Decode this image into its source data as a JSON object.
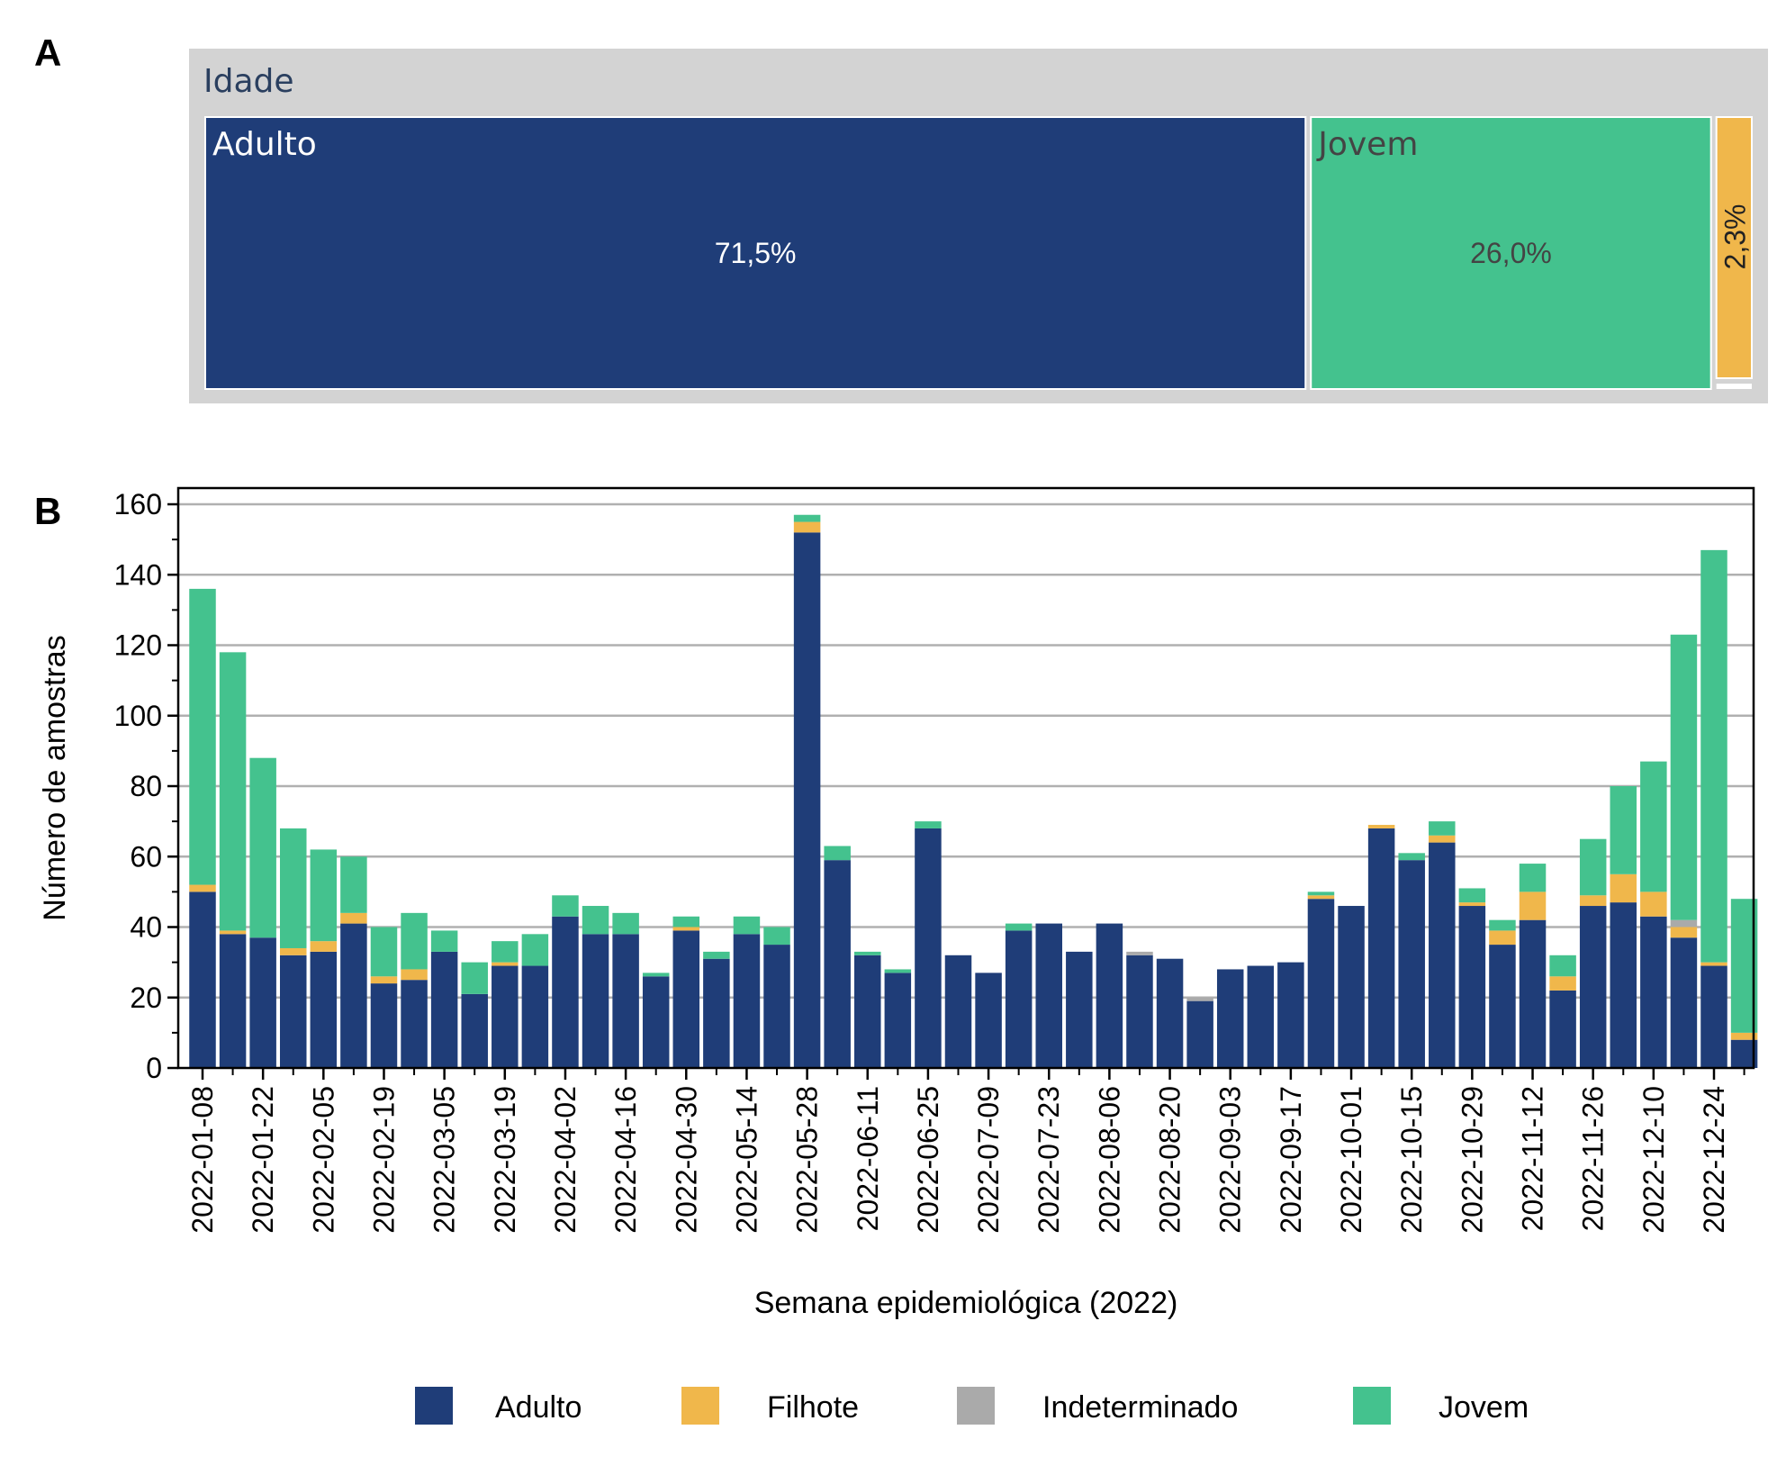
{
  "panel_a": {
    "label": "A",
    "header": "Idade",
    "tiles": [
      {
        "name": "Adulto",
        "pct_label": "71,5%",
        "share": 71.5,
        "color": "#1f3d78",
        "text_color": "#ffffff"
      },
      {
        "name": "Jovem",
        "pct_label": "26,0%",
        "share": 26.0,
        "color": "#44c28e",
        "text_color": "#444444"
      },
      {
        "name": "",
        "pct_label": "2,3%",
        "share": 2.3,
        "color": "#f0b74b",
        "text_color": "#222222"
      }
    ]
  },
  "panel_b": {
    "label": "B"
  },
  "chart_data": {
    "type": "bar",
    "stacked": true,
    "xlabel": "Semana epidemiológica (2022)",
    "ylabel": "Número de amostras",
    "ylim": [
      0,
      160
    ],
    "yticks": [
      0,
      20,
      40,
      60,
      80,
      100,
      120,
      140,
      160
    ],
    "grid": true,
    "legend_position": "bottom",
    "tick_labels": [
      "2022-01-08",
      "2022-01-22",
      "2022-02-05",
      "2022-02-19",
      "2022-03-05",
      "2022-03-19",
      "2022-04-02",
      "2022-04-16",
      "2022-04-30",
      "2022-05-14",
      "2022-05-28",
      "2022-06-11",
      "2022-06-25",
      "2022-07-09",
      "2022-07-23",
      "2022-08-06",
      "2022-08-20",
      "2022-09-03",
      "2022-09-17",
      "2022-10-01",
      "2022-10-15",
      "2022-10-29",
      "2022-11-12",
      "2022-11-26",
      "2022-12-10",
      "2022-12-24"
    ],
    "categories": [
      "2022-01-08",
      "2022-01-15",
      "2022-01-22",
      "2022-01-29",
      "2022-02-05",
      "2022-02-12",
      "2022-02-19",
      "2022-02-26",
      "2022-03-05",
      "2022-03-12",
      "2022-03-19",
      "2022-03-26",
      "2022-04-02",
      "2022-04-09",
      "2022-04-16",
      "2022-04-23",
      "2022-04-30",
      "2022-05-07",
      "2022-05-14",
      "2022-05-21",
      "2022-05-28",
      "2022-06-04",
      "2022-06-11",
      "2022-06-18",
      "2022-06-25",
      "2022-07-02",
      "2022-07-09",
      "2022-07-16",
      "2022-07-23",
      "2022-07-30",
      "2022-08-06",
      "2022-08-13",
      "2022-08-20",
      "2022-08-27",
      "2022-09-03",
      "2022-09-10",
      "2022-09-17",
      "2022-09-24",
      "2022-10-01",
      "2022-10-08",
      "2022-10-15",
      "2022-10-22",
      "2022-10-29",
      "2022-11-05",
      "2022-11-12",
      "2022-11-19",
      "2022-11-26",
      "2022-12-03",
      "2022-12-10",
      "2022-12-17",
      "2022-12-24",
      "2022-12-31"
    ],
    "series": [
      {
        "name": "Adulto",
        "color": "#1f3d78",
        "values": [
          50,
          38,
          37,
          32,
          33,
          41,
          24,
          25,
          33,
          21,
          29,
          29,
          43,
          38,
          38,
          26,
          39,
          31,
          38,
          35,
          152,
          59,
          32,
          27,
          68,
          32,
          27,
          39,
          41,
          33,
          41,
          32,
          31,
          19,
          28,
          29,
          30,
          48,
          46,
          68,
          59,
          64,
          46,
          35,
          42,
          22,
          46,
          47,
          43,
          37,
          29,
          8
        ]
      },
      {
        "name": "Filhote",
        "color": "#f0b74b",
        "values": [
          2,
          1,
          0,
          2,
          3,
          3,
          2,
          3,
          0,
          0,
          1,
          0,
          0,
          0,
          0,
          0,
          1,
          0,
          0,
          0,
          3,
          0,
          0,
          0,
          0,
          0,
          0,
          0,
          0,
          0,
          0,
          0,
          0,
          0,
          0,
          0,
          0,
          1,
          0,
          1,
          0,
          2,
          1,
          4,
          8,
          4,
          3,
          8,
          7,
          3,
          1,
          2
        ]
      },
      {
        "name": "Indeterminado",
        "color": "#aaaaaa",
        "values": [
          0,
          0,
          0,
          0,
          0,
          0,
          0,
          0,
          0,
          0,
          0,
          0,
          0,
          0,
          0,
          0,
          0,
          0,
          0,
          0,
          0,
          0,
          0,
          0,
          0,
          0,
          0,
          0,
          0,
          0,
          0,
          1,
          0,
          1,
          0,
          0,
          0,
          0,
          0,
          0,
          0,
          0,
          0,
          0,
          0,
          0,
          0,
          0,
          0,
          2,
          0,
          0
        ]
      },
      {
        "name": "Jovem",
        "color": "#44c28e",
        "values": [
          84,
          79,
          51,
          34,
          26,
          16,
          14,
          16,
          6,
          9,
          6,
          9,
          6,
          8,
          6,
          1,
          3,
          2,
          5,
          5,
          2,
          4,
          1,
          1,
          2,
          0,
          0,
          2,
          0,
          0,
          0,
          0,
          0,
          0,
          0,
          0,
          0,
          1,
          0,
          0,
          2,
          4,
          4,
          3,
          8,
          6,
          16,
          25,
          37,
          81,
          117,
          38
        ]
      }
    ]
  }
}
